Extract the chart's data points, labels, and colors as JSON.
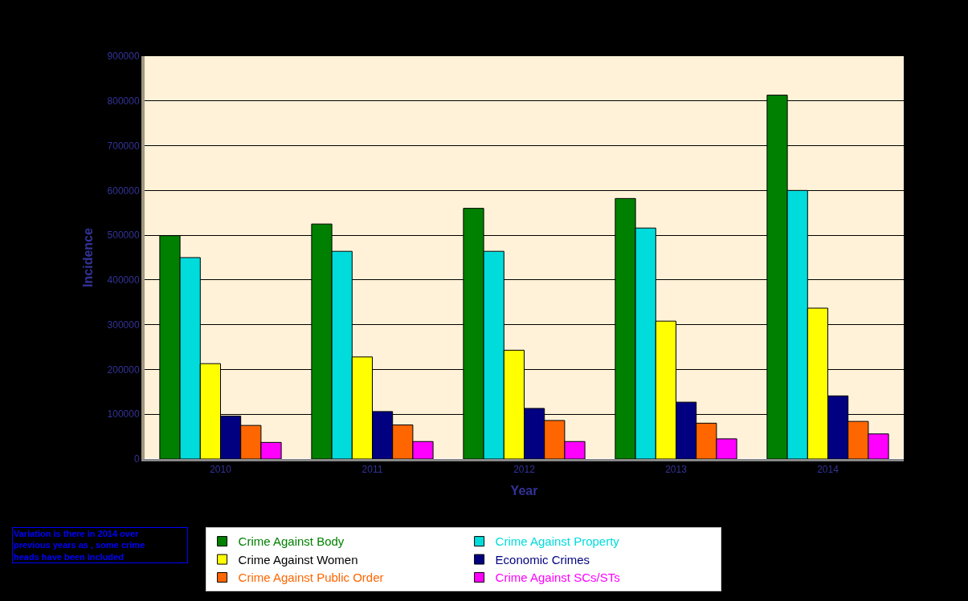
{
  "chart_data": {
    "type": "bar",
    "xlabel": "Year",
    "ylabel": "Incidence",
    "categories": [
      "2010",
      "2011",
      "2012",
      "2013",
      "2014"
    ],
    "series": [
      {
        "name": "Crime Against Body",
        "color": "#008000",
        "values": [
          499000,
          525000,
          560000,
          582000,
          813000
        ]
      },
      {
        "name": "Crime Against Property",
        "color": "#00dcdc",
        "values": [
          450000,
          464000,
          464000,
          516000,
          600000
        ]
      },
      {
        "name": "Crime Against Women",
        "color": "#ffff00",
        "values": [
          213000,
          228000,
          243000,
          308000,
          337000
        ]
      },
      {
        "name": "Economic Crimes",
        "color": "#000080",
        "values": [
          96000,
          106000,
          113000,
          127000,
          141000
        ]
      },
      {
        "name": "Crime Against Public Order",
        "color": "#ff6600",
        "values": [
          75000,
          76000,
          86000,
          80000,
          84000
        ]
      },
      {
        "name": "Crime Against SCs/STs",
        "color": "#ff00ff",
        "values": [
          37000,
          39000,
          39000,
          45000,
          56000
        ]
      }
    ],
    "ylim": [
      0,
      900000
    ],
    "yticks": [
      0,
      100000,
      200000,
      300000,
      400000,
      500000,
      600000,
      700000,
      800000,
      900000
    ],
    "grid": "y",
    "legend": "bottom",
    "annotations": [
      "Variation is there in 2014 over previous years as , some crime heads have been included"
    ]
  }
}
